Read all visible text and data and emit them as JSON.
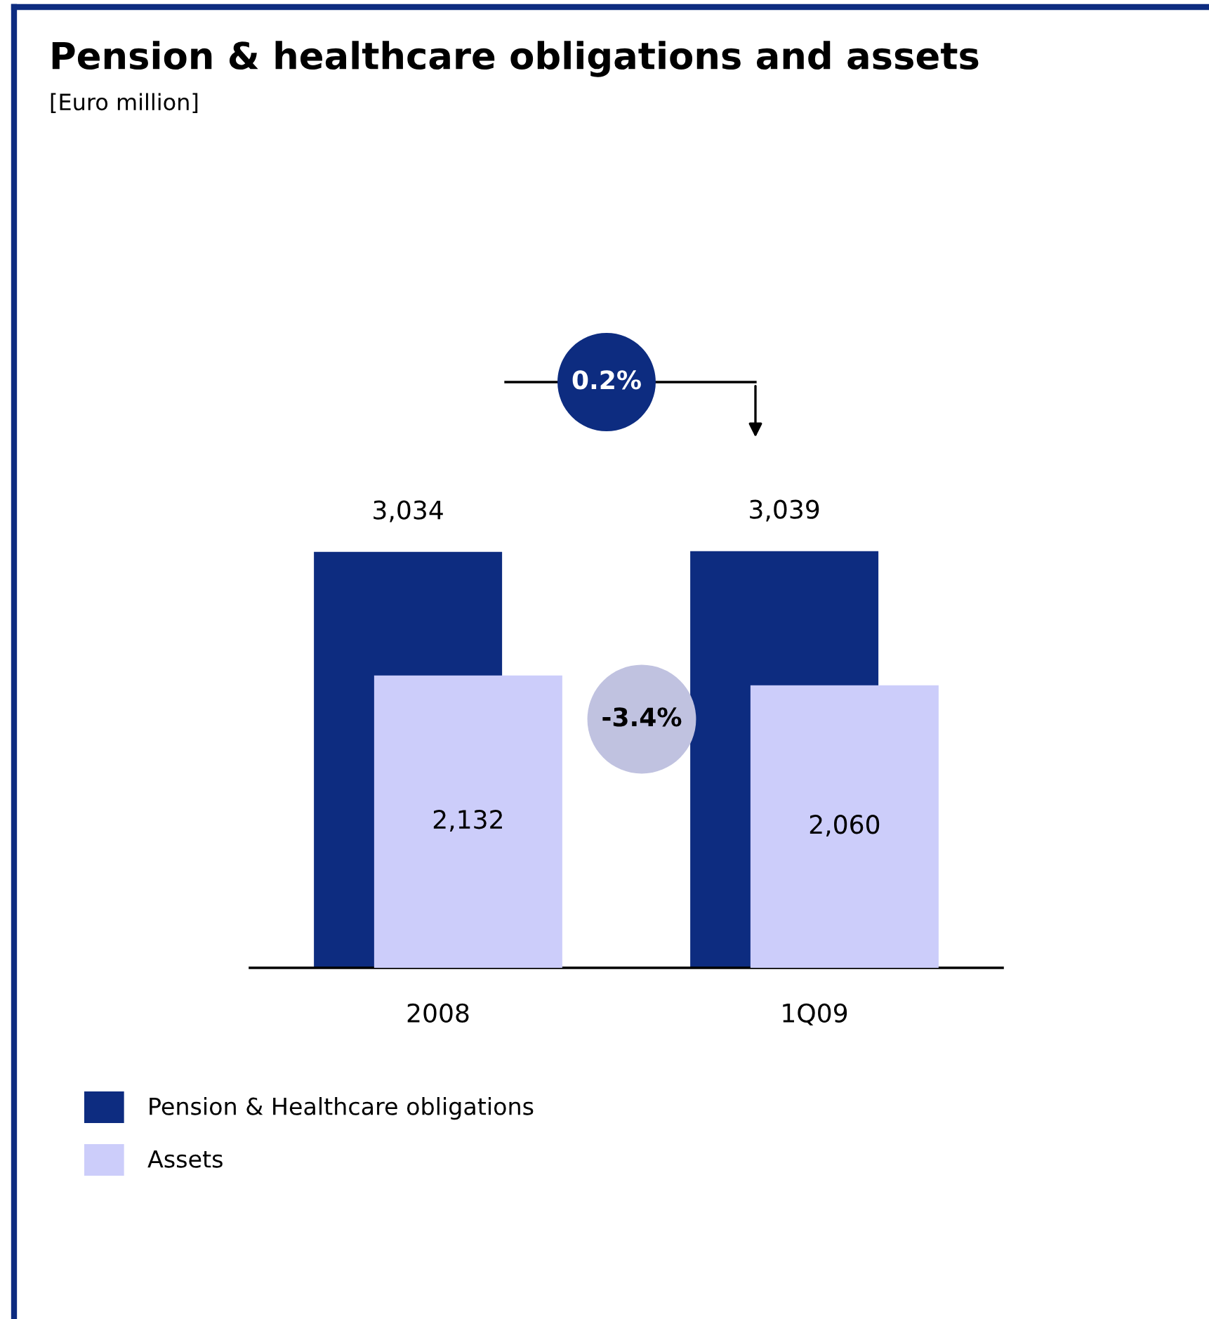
{
  "chart_data": {
    "type": "bar",
    "title": "Pension & healthcare obligations and assets",
    "subtitle": "[Euro million]",
    "categories": [
      "2008",
      "1Q09"
    ],
    "series": [
      {
        "name": "Pension & Healthcare obligations",
        "color": "#0d2c80",
        "values": [
          3034,
          3039
        ],
        "value_labels": [
          "3,034",
          "3,039"
        ]
      },
      {
        "name": "Assets",
        "color": "#cccdfa",
        "values": [
          2132,
          2060
        ],
        "value_labels": [
          "2,132",
          "2,060"
        ]
      }
    ],
    "annotations": [
      "0.2%",
      "-3.4%"
    ],
    "legend": "bottom left",
    "grid": false
  }
}
